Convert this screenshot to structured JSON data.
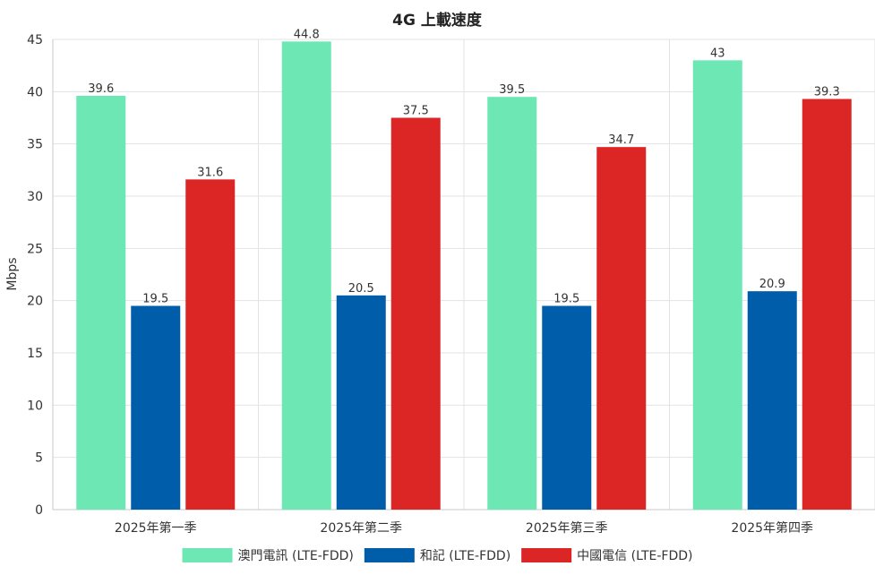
{
  "chart_data": {
    "type": "bar",
    "title": "4G 上載速度",
    "xlabel": "",
    "ylabel": "Mbps",
    "ylim": [
      0,
      45
    ],
    "yticks": [
      0,
      5,
      10,
      15,
      20,
      25,
      30,
      35,
      40,
      45
    ],
    "grid": true,
    "legend_position": "bottom",
    "categories": [
      "2025年第一季",
      "2025年第二季",
      "2025年第三季",
      "2025年第四季"
    ],
    "series": [
      {
        "name": "澳門電訊 (LTE-FDD)",
        "color": "#6de8b4",
        "values": [
          39.6,
          44.8,
          39.5,
          43
        ]
      },
      {
        "name": "和記 (LTE-FDD)",
        "color": "#005daa",
        "values": [
          19.5,
          20.5,
          19.5,
          20.9
        ]
      },
      {
        "name": "中國電信 (LTE-FDD)",
        "color": "#dc2626",
        "values": [
          31.6,
          37.5,
          34.7,
          39.3
        ]
      }
    ]
  }
}
